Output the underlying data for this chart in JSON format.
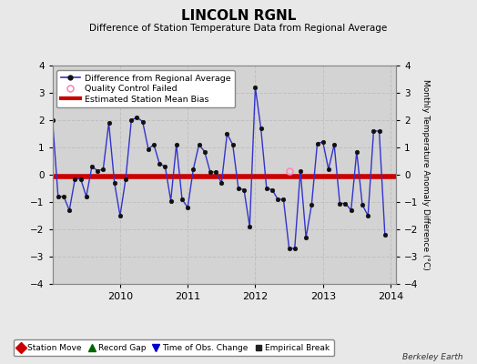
{
  "title": "LINCOLN RGNL",
  "subtitle": "Difference of Station Temperature Data from Regional Average",
  "ylabel_right": "Monthly Temperature Anomaly Difference (°C)",
  "credit": "Berkeley Earth",
  "ylim": [
    -4,
    4
  ],
  "bias_line_y": -0.07,
  "background_color": "#e8e8e8",
  "plot_bg_color": "#d3d3d3",
  "time_series": {
    "dates": [
      2009.0,
      2009.083,
      2009.167,
      2009.25,
      2009.333,
      2009.417,
      2009.5,
      2009.583,
      2009.667,
      2009.75,
      2009.833,
      2009.917,
      2010.0,
      2010.083,
      2010.167,
      2010.25,
      2010.333,
      2010.417,
      2010.5,
      2010.583,
      2010.667,
      2010.75,
      2010.833,
      2010.917,
      2011.0,
      2011.083,
      2011.167,
      2011.25,
      2011.333,
      2011.417,
      2011.5,
      2011.583,
      2011.667,
      2011.75,
      2011.833,
      2011.917,
      2012.0,
      2012.083,
      2012.167,
      2012.25,
      2012.333,
      2012.417,
      2012.5,
      2012.583,
      2012.667,
      2012.75,
      2012.833,
      2012.917,
      2013.0,
      2013.083,
      2013.167,
      2013.25,
      2013.333,
      2013.417,
      2013.5,
      2013.583,
      2013.667,
      2013.75,
      2013.833,
      2013.917
    ],
    "values": [
      2.0,
      -0.8,
      -0.8,
      -1.3,
      -0.15,
      -0.15,
      -0.8,
      0.3,
      0.15,
      0.2,
      1.9,
      -0.3,
      -1.5,
      -0.15,
      2.0,
      2.1,
      1.95,
      0.95,
      1.1,
      0.4,
      0.3,
      -0.95,
      1.1,
      -0.9,
      -1.2,
      0.2,
      1.1,
      0.85,
      0.1,
      0.1,
      -0.3,
      1.5,
      1.1,
      -0.5,
      -0.55,
      -1.9,
      3.2,
      1.7,
      -0.5,
      -0.55,
      -0.9,
      -0.9,
      -2.7,
      -2.7,
      0.15,
      -2.3,
      -1.1,
      1.15,
      1.2,
      0.2,
      1.1,
      -1.05,
      -1.05,
      -1.3,
      0.85,
      -1.1,
      -1.5,
      1.6,
      1.6,
      -2.2
    ]
  },
  "qc_failed": [
    {
      "date": 2012.5,
      "value": 0.15
    }
  ],
  "xlim": [
    2009.0,
    2014.08
  ],
  "xticks": [
    2010,
    2011,
    2012,
    2013,
    2014
  ],
  "yticks": [
    -4,
    -3,
    -2,
    -1,
    0,
    1,
    2,
    3,
    4
  ],
  "grid_color": "#c0c0c0",
  "grid_style": "--",
  "line_color": "#3333cc",
  "marker_color": "#111111",
  "bias_color": "#cc0000",
  "qc_color": "#ff88bb"
}
